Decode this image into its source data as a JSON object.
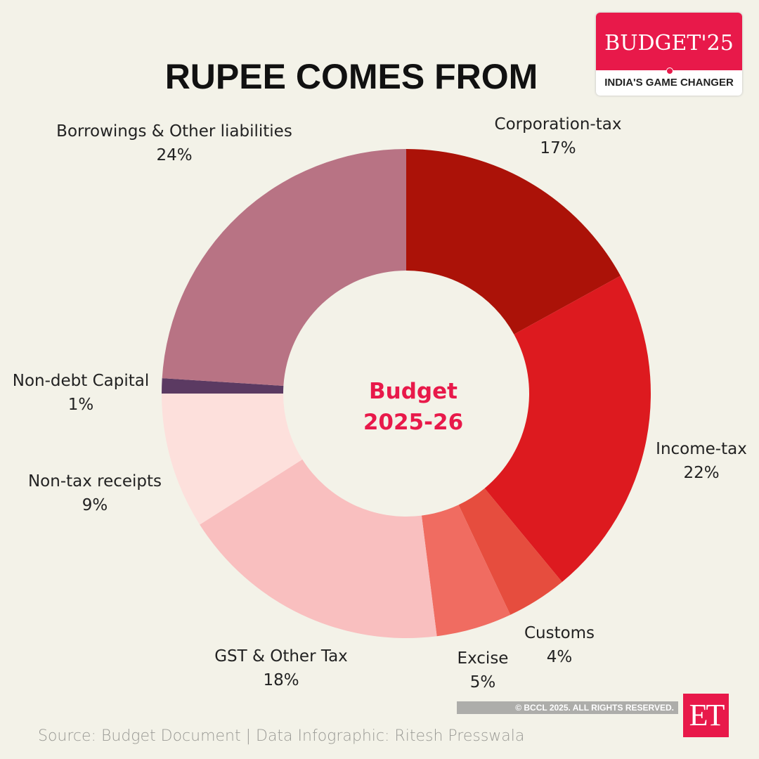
{
  "chart_data": {
    "type": "pie",
    "donut": true,
    "title": "RUPEE COMES FROM",
    "center_label": [
      "Budget",
      "2025-26"
    ],
    "start": "top",
    "direction": "clockwise",
    "slices": [
      {
        "label": "Corporation-tax",
        "value": 17,
        "display": "17%",
        "color": "#ab1208"
      },
      {
        "label": "Income-tax",
        "value": 22,
        "display": "22%",
        "color": "#dd1a1f"
      },
      {
        "label": "Customs",
        "value": 4,
        "display": "4%",
        "color": "#e64d3e"
      },
      {
        "label": "Excise",
        "value": 5,
        "display": "5%",
        "color": "#f06c61"
      },
      {
        "label": "GST & Other Tax",
        "value": 18,
        "display": "18%",
        "color": "#f9bfbf"
      },
      {
        "label": "Non-tax receipts",
        "value": 9,
        "display": "9%",
        "color": "#fde0dc"
      },
      {
        "label": "Non-debt Capital",
        "value": 1,
        "display": "1%",
        "color": "#5b3a62"
      },
      {
        "label": "Borrowings & Other liabilities",
        "value": 24,
        "display": "24%",
        "color": "#b87384"
      }
    ]
  },
  "badge": {
    "main": "BUDGET'25",
    "sub": "INDIA'S GAME CHANGER"
  },
  "copyright": "© BCCL 2025. ALL RIGHTS RESERVED.",
  "logo": "ET",
  "source": "Source: Budget Document | Data Infographic: Ritesh Presswala",
  "colors": {
    "background": "#f3f2e8",
    "accent": "#e8194a"
  }
}
